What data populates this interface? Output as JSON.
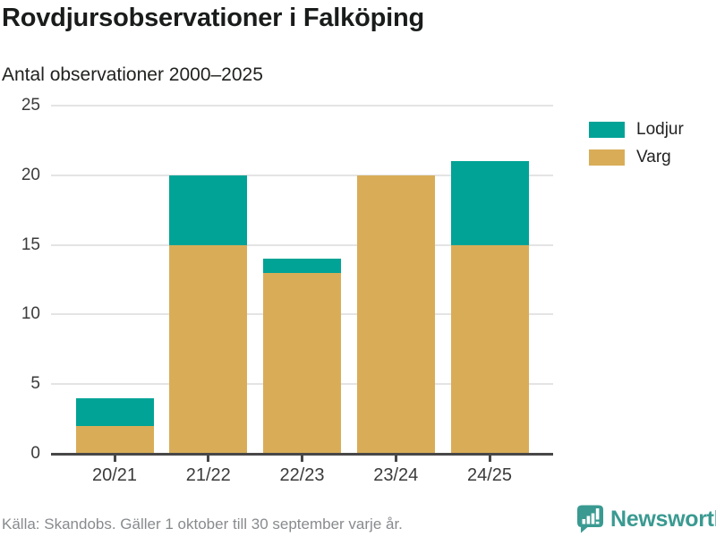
{
  "header": {
    "title": "Rovdjursobservationer i Falköping",
    "subtitle": "Antal observationer 2000–2025"
  },
  "chart_data": {
    "type": "bar",
    "stacked": true,
    "title": "Rovdjursobservationer i Falköping",
    "subtitle": "Antal observationer 2000–2025",
    "xlabel": "",
    "ylabel": "Antal observationer",
    "categories": [
      "20/21",
      "21/22",
      "22/23",
      "23/24",
      "24/25"
    ],
    "series": [
      {
        "name": "Varg",
        "color": "#d9ad58",
        "values": [
          2,
          15,
          13,
          20,
          15
        ]
      },
      {
        "name": "Lodjur",
        "color": "#00a396",
        "values": [
          2,
          5,
          1,
          0,
          6
        ]
      }
    ],
    "totals": [
      4,
      20,
      14,
      20,
      21
    ],
    "ylim": [
      0,
      25
    ],
    "yticks": [
      0,
      5,
      10,
      15,
      20,
      25
    ],
    "grid": true,
    "legend_position": "right"
  },
  "legend": {
    "items": [
      {
        "label": "Lodjur",
        "color": "#00a396"
      },
      {
        "label": "Varg",
        "color": "#d9ad58"
      }
    ]
  },
  "footer": {
    "source": "Källa: Skandobs. Gäller 1 oktober till 30 september varje år.",
    "brand": "Newsworthy",
    "brand_icon": "newsworthy-bar-chart-bubble-icon",
    "brand_color": "#3a9a91"
  },
  "colors": {
    "lodjur": "#00a396",
    "varg": "#d9ad58",
    "axis": "#474747",
    "gridline": "#e4e4e4",
    "text": "#191c1a",
    "muted_text": "#888b8e"
  }
}
